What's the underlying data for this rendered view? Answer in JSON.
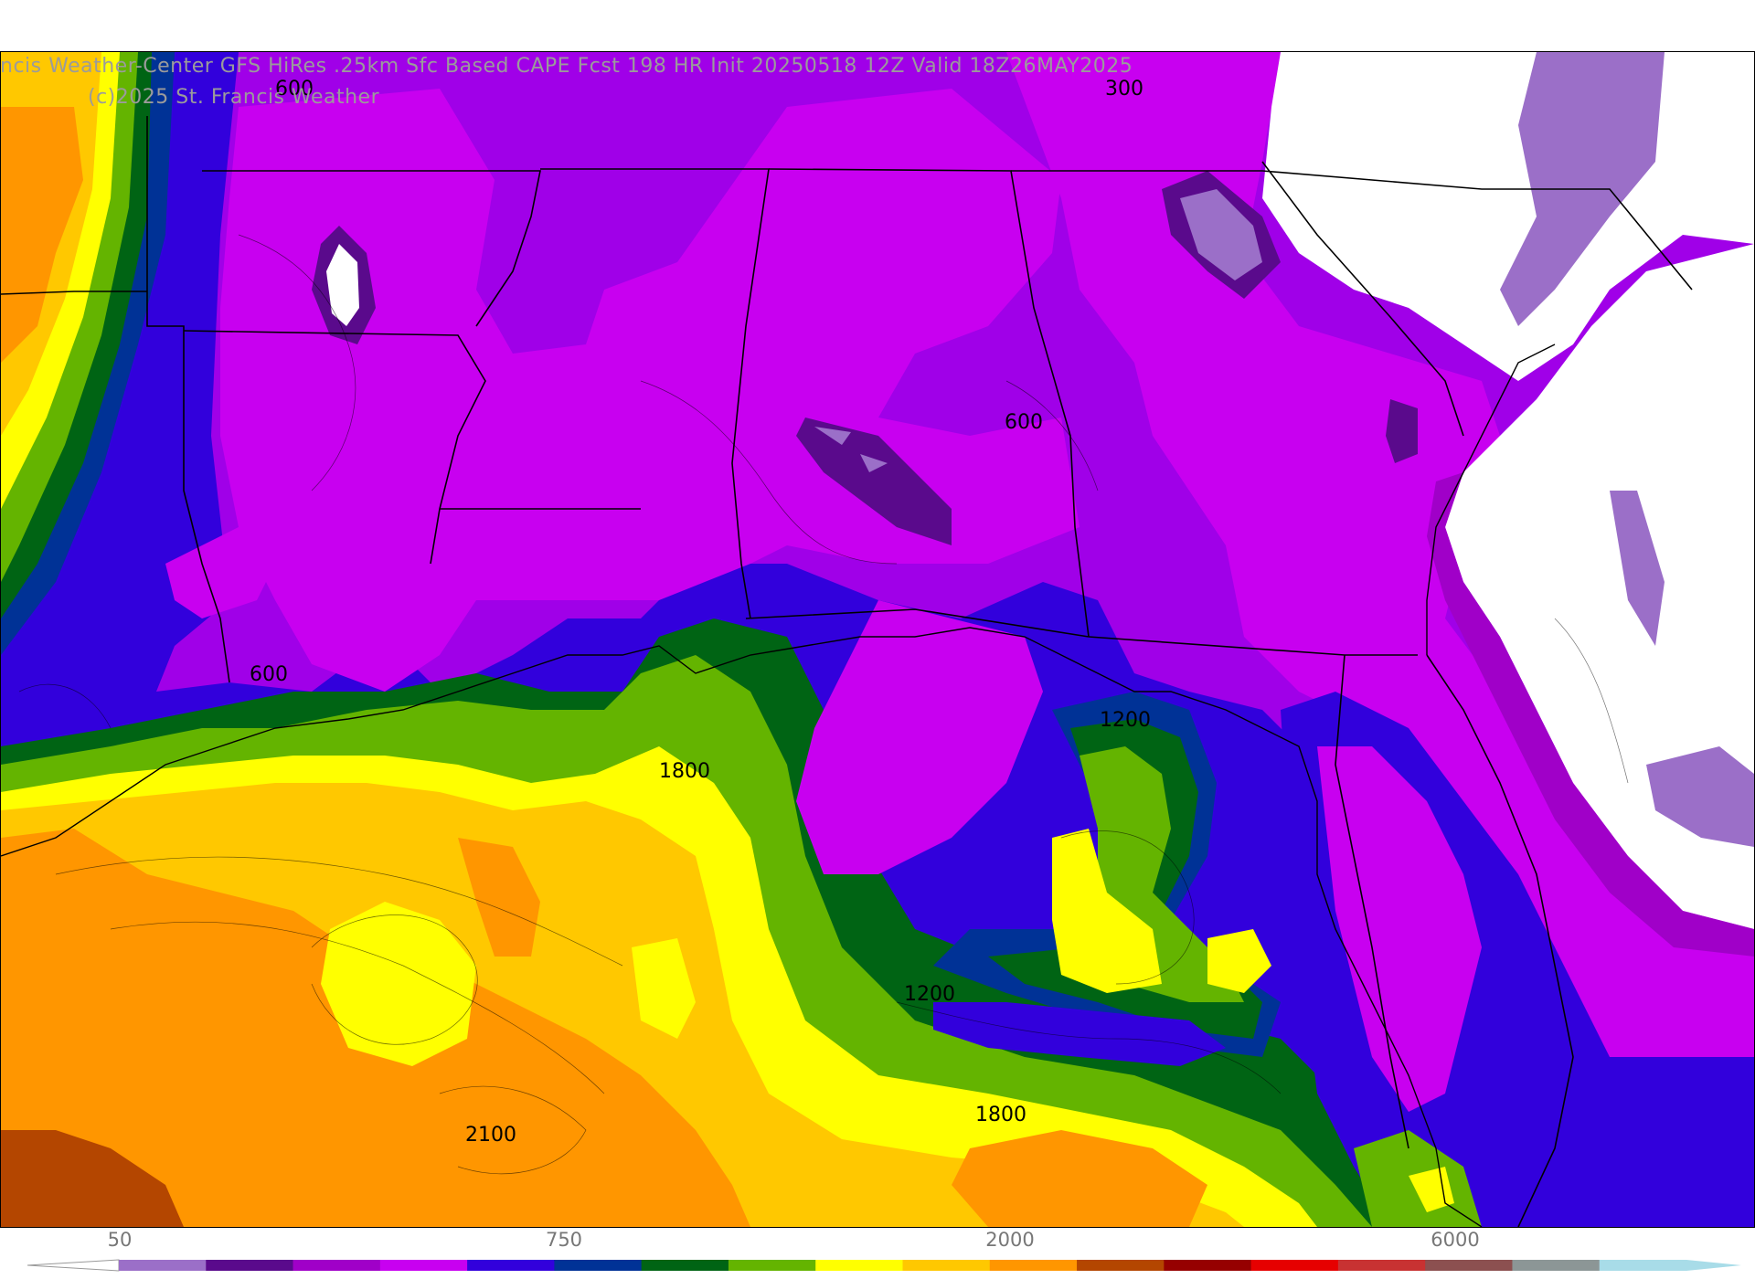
{
  "title": {
    "main": "ncis Weather-Center GFS HiRes .25km Sfc Based CAPE  Fcst 198 HR Init 20250518 12Z  Valid 18Z26MAY2025",
    "copyright": "(c)2025 St. Francis Weather"
  },
  "contour_labels": [
    "600",
    "300",
    "600",
    "600",
    "1200",
    "1800",
    "1200",
    "1800",
    "2100"
  ],
  "colorbar": {
    "tick_labels": [
      "50",
      "750",
      "2000",
      "6000"
    ],
    "colors": [
      "#9b6fc8",
      "#5a0a8c",
      "#a000c8",
      "#c800f0",
      "#3200dc",
      "#003296",
      "#006414",
      "#64b400",
      "#ffff00",
      "#ffc800",
      "#ff9600",
      "#b44600",
      "#960000",
      "#e60000",
      "#c83232",
      "#8c5050",
      "#8c9696",
      "#a8dce8"
    ]
  },
  "colors": {
    "cape_lt_300": "#9b6fc8",
    "cape_300": "#5a0a8c",
    "cape_450": "#a000c8",
    "cape_600": "#c800f0",
    "cape_750": "#3200dc",
    "cape_1000": "#003296",
    "cape_1200": "#006414",
    "cape_1500": "#64b400",
    "cape_1800": "#ffff00",
    "cape_2000": "#ffc800",
    "cape_2500": "#ff9600",
    "cape_3000": "#b44600"
  }
}
